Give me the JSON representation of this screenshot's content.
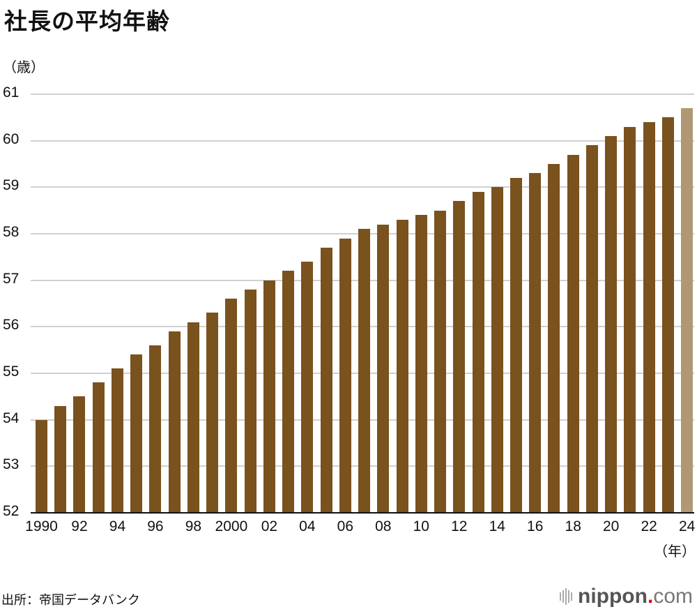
{
  "title": "社長の平均年齢",
  "y_unit": "（歳）",
  "x_unit": "（年）",
  "source": "出所：帝国データバンク",
  "logo": {
    "name": "nippon",
    "dot": ".",
    "suffix": "com",
    "icon": "sound-bars-icon"
  },
  "colors": {
    "bar": "#7a521e",
    "highlight": "#b19874",
    "grid": "#d0d0d0"
  },
  "chart_data": {
    "type": "bar",
    "title": "社長の平均年齢",
    "xlabel": "（年）",
    "ylabel": "（歳）",
    "ylim": [
      52,
      61
    ],
    "yticks": [
      52,
      53,
      54,
      55,
      56,
      57,
      58,
      59,
      60,
      61
    ],
    "grid": true,
    "categories": [
      1990,
      1991,
      1992,
      1993,
      1994,
      1995,
      1996,
      1997,
      1998,
      1999,
      2000,
      2001,
      2002,
      2003,
      2004,
      2005,
      2006,
      2007,
      2008,
      2009,
      2010,
      2011,
      2012,
      2013,
      2014,
      2015,
      2016,
      2017,
      2018,
      2019,
      2020,
      2021,
      2022,
      2023,
      2024
    ],
    "xtick_labels": [
      "1990",
      "",
      "92",
      "",
      "94",
      "",
      "96",
      "",
      "98",
      "",
      "2000",
      "",
      "02",
      "",
      "04",
      "",
      "06",
      "",
      "08",
      "",
      "10",
      "",
      "12",
      "",
      "14",
      "",
      "16",
      "",
      "18",
      "",
      "20",
      "",
      "22",
      "",
      "24"
    ],
    "values": [
      54.0,
      54.3,
      54.5,
      54.8,
      55.1,
      55.4,
      55.6,
      55.9,
      56.1,
      56.3,
      56.6,
      56.8,
      57.0,
      57.2,
      57.4,
      57.7,
      57.9,
      58.1,
      58.2,
      58.3,
      58.4,
      58.5,
      58.7,
      58.9,
      59.0,
      59.2,
      59.3,
      59.5,
      59.7,
      59.9,
      60.1,
      60.3,
      60.4,
      60.5,
      60.7
    ],
    "highlighted_category": 2024
  }
}
